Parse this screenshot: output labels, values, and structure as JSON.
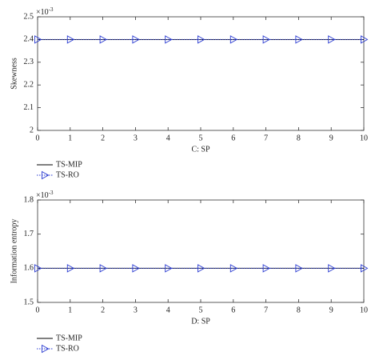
{
  "chart_data": [
    {
      "type": "line",
      "y_label": "Skewness",
      "x_label": "C: SP",
      "y_scale_base": "×10",
      "y_scale_exponent": "-3",
      "x": [
        0,
        1,
        2,
        3,
        4,
        5,
        6,
        7,
        8,
        9,
        10
      ],
      "xlim": [
        0,
        10
      ],
      "xticks": [
        0,
        1,
        2,
        3,
        4,
        5,
        6,
        7,
        8,
        9,
        10
      ],
      "ylim": [
        2,
        2.5
      ],
      "yticks": [
        2,
        2.1,
        2.2,
        2.3,
        2.4,
        2.5
      ],
      "series": [
        {
          "name": "TS-MIP",
          "color": "#000000",
          "values": [
            2.4,
            2.4,
            2.4,
            2.4,
            2.4,
            2.4,
            2.4,
            2.4,
            2.4,
            2.4,
            2.4
          ]
        },
        {
          "name": "TS-RO",
          "color": "#2a3bd1",
          "values": [
            2.4,
            2.4,
            2.4,
            2.4,
            2.4,
            2.4,
            2.4,
            2.4,
            2.4,
            2.4,
            2.4
          ]
        }
      ]
    },
    {
      "type": "line",
      "y_label": "Information entropy",
      "x_label": "D: SP",
      "y_scale_base": "×10",
      "y_scale_exponent": "-3",
      "x": [
        0,
        1,
        2,
        3,
        4,
        5,
        6,
        7,
        8,
        9,
        10
      ],
      "xlim": [
        0,
        10
      ],
      "xticks": [
        0,
        1,
        2,
        3,
        4,
        5,
        6,
        7,
        8,
        9,
        10
      ],
      "ylim": [
        1.5,
        1.8
      ],
      "yticks": [
        1.5,
        1.6,
        1.7,
        1.8
      ],
      "series": [
        {
          "name": "TS-MIP",
          "color": "#000000",
          "values": [
            1.6,
            1.6,
            1.6,
            1.6,
            1.6,
            1.6,
            1.6,
            1.6,
            1.6,
            1.6,
            1.6
          ]
        },
        {
          "name": "TS-RO",
          "color": "#2a3bd1",
          "values": [
            1.6,
            1.6,
            1.6,
            1.6,
            1.6,
            1.6,
            1.6,
            1.6,
            1.6,
            1.6,
            1.6
          ]
        }
      ]
    }
  ]
}
